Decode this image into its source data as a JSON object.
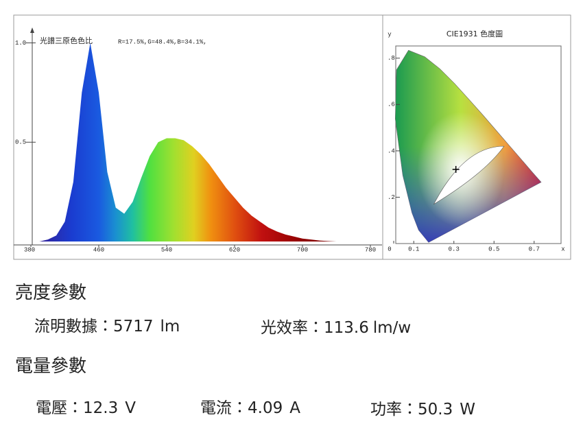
{
  "chart_data": [
    {
      "type": "area",
      "title": "光譜三原色色比",
      "subtitle": "R=17.5%,G=48.4%,B=34.1%,",
      "x": [
        380,
        390,
        400,
        410,
        420,
        430,
        440,
        450,
        460,
        470,
        480,
        490,
        500,
        510,
        520,
        530,
        540,
        550,
        560,
        570,
        580,
        590,
        600,
        610,
        620,
        630,
        640,
        650,
        660,
        670,
        680,
        690,
        700,
        710,
        720,
        730,
        740,
        750,
        760,
        770,
        780
      ],
      "values": [
        0,
        0,
        0.01,
        0.03,
        0.1,
        0.3,
        0.75,
        1.0,
        0.75,
        0.35,
        0.17,
        0.14,
        0.2,
        0.32,
        0.43,
        0.5,
        0.52,
        0.52,
        0.51,
        0.48,
        0.44,
        0.39,
        0.33,
        0.27,
        0.22,
        0.17,
        0.13,
        0.1,
        0.07,
        0.05,
        0.035,
        0.025,
        0.015,
        0.01,
        0.005,
        0.002,
        0,
        0,
        0,
        0,
        0
      ],
      "xlim": [
        380,
        780
      ],
      "xticks": [
        380,
        460,
        540,
        620,
        700,
        780
      ],
      "ylim": [
        0,
        1.14
      ],
      "yticks": [
        {
          "value": 1,
          "label": "1.0"
        },
        {
          "value": 0.5,
          "label": "0.5"
        }
      ]
    },
    {
      "type": "scatter",
      "title": "CIE1931 色度圖",
      "xlabel": "x",
      "ylabel": "y",
      "x": [
        0.31
      ],
      "values": [
        0.32
      ],
      "xlim": [
        0,
        0.8
      ],
      "xticks": [
        0,
        0.1,
        0.3,
        0.5,
        0.7
      ],
      "ylim": [
        0,
        0.9
      ],
      "yticks": [
        {
          "value": 0.2,
          "label": ".2"
        },
        {
          "value": 0.4,
          "label": ".4"
        },
        {
          "value": 0.6,
          "label": ".6"
        },
        {
          "value": 0.8,
          "label": ".8"
        }
      ]
    }
  ],
  "brightness": {
    "title": "亮度參數",
    "items": [
      {
        "label": "流明數據：",
        "value": 5717,
        "unit": "lm"
      },
      {
        "label": "光效率：",
        "value": 113.6,
        "unit": "lm/w"
      }
    ]
  },
  "electrical": {
    "title": "電量參數",
    "items": [
      {
        "label": "電壓：",
        "value": 12.3,
        "unit": "V"
      },
      {
        "label": "電流：",
        "value": 4.09,
        "unit": "A"
      },
      {
        "label": "功率：",
        "value": 50.3,
        "unit": "W"
      }
    ]
  }
}
